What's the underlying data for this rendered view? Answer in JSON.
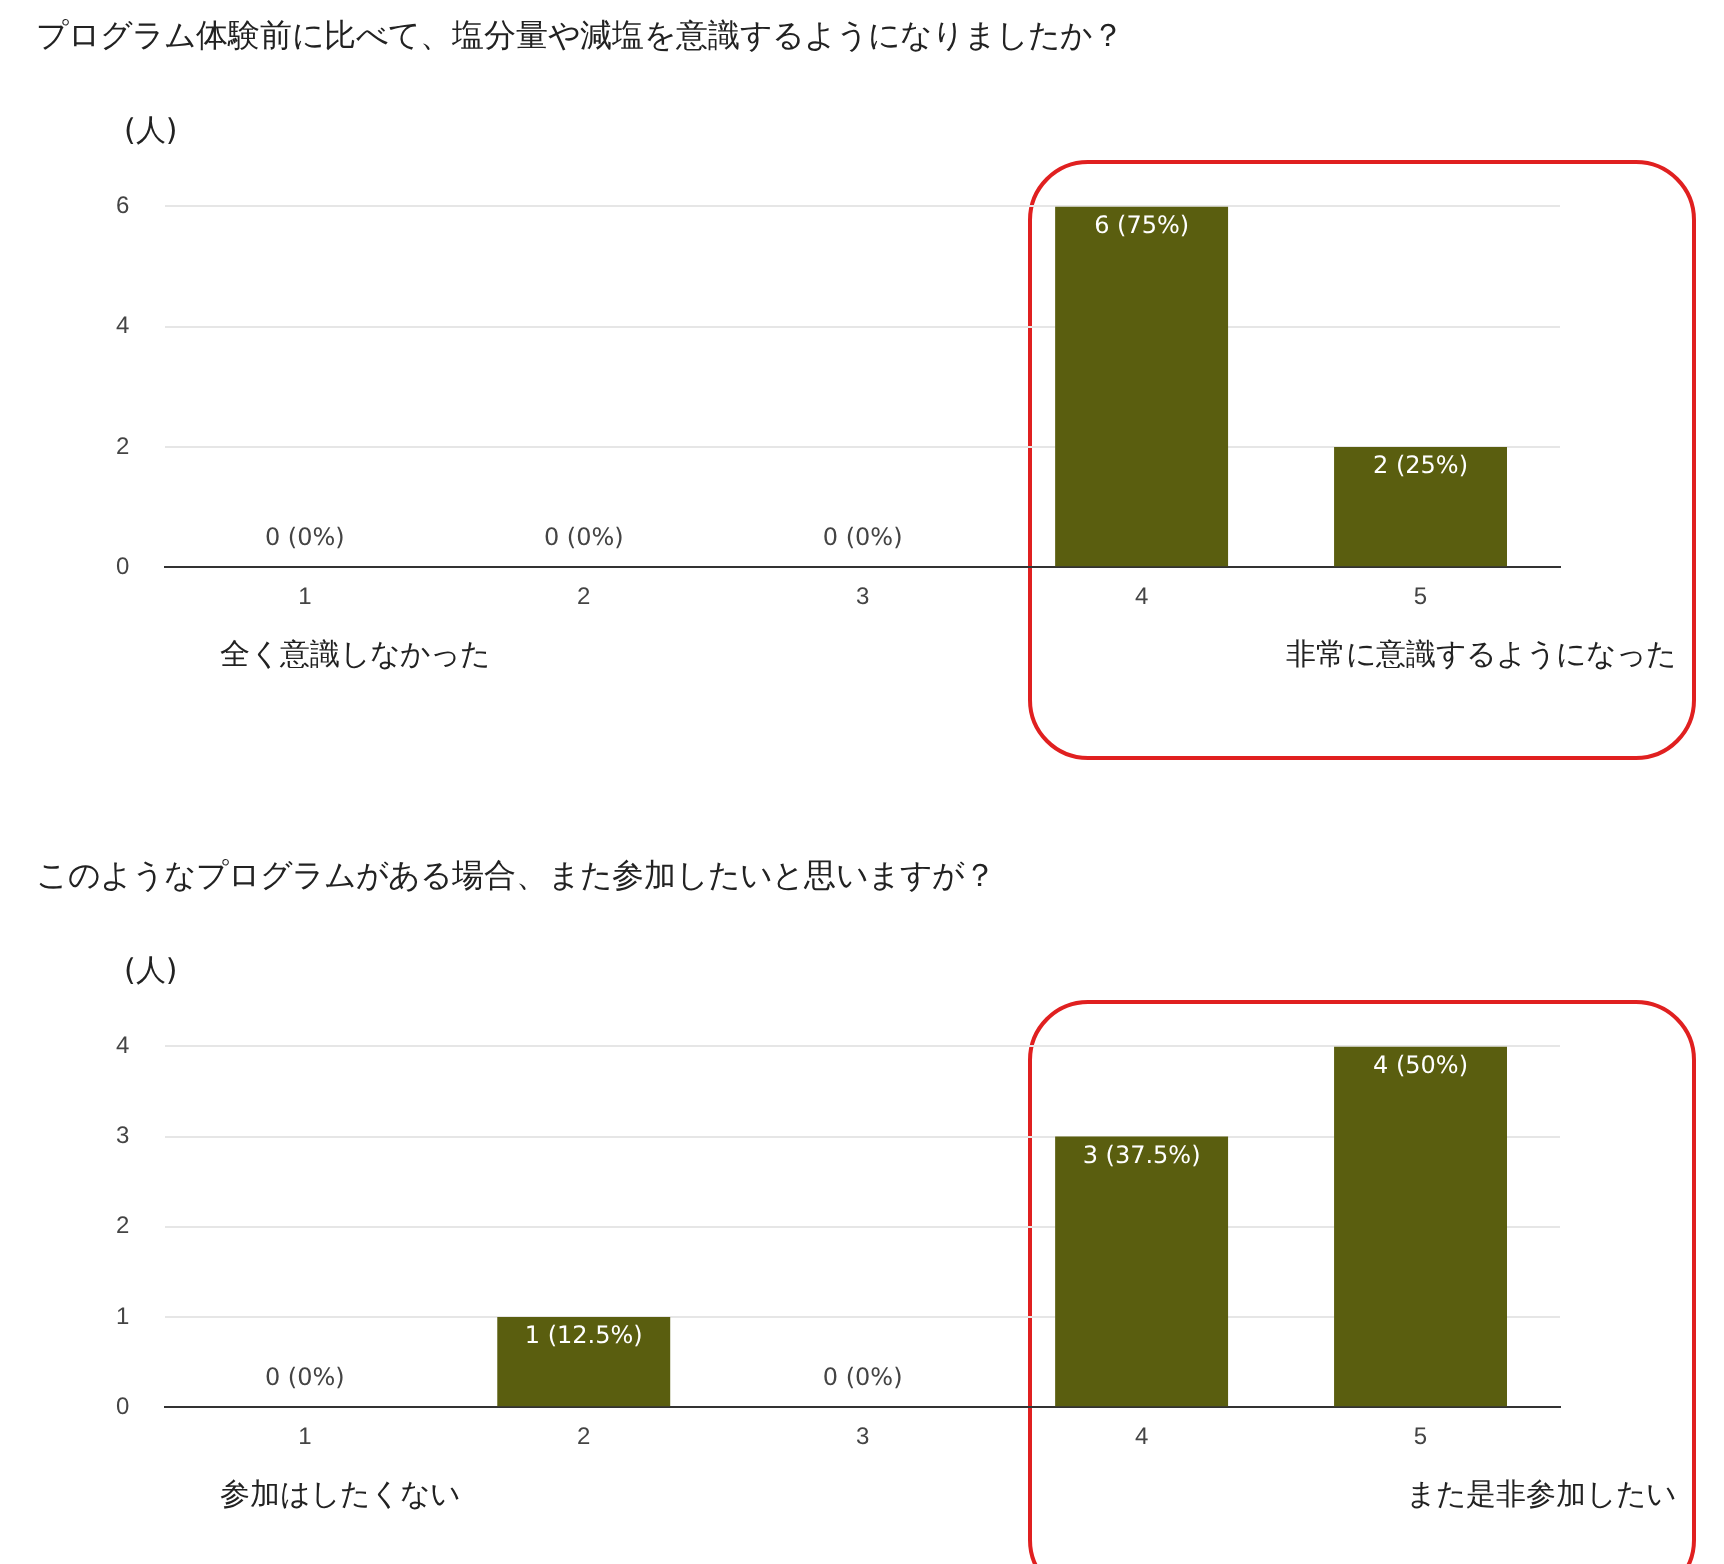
{
  "chart_data": [
    {
      "type": "bar",
      "title": "プログラム体験前に比べて、塩分量や減塩を意識するようになりましたか？",
      "ylabel": "(人)",
      "categories": [
        "1",
        "2",
        "3",
        "4",
        "5"
      ],
      "values": [
        0,
        0,
        0,
        6,
        2
      ],
      "color": "#5a5e0f",
      "value_labels": [
        "0 (0%)",
        "0 (0%)",
        "0 (0%)",
        "6 (75%)",
        "2 (25%)"
      ],
      "ylim": [
        0,
        6
      ],
      "yticks": [
        0,
        2,
        4,
        6
      ],
      "grid": "y",
      "legend": false,
      "annotations": [
        "全く意識しなかった",
        "非常に意識するようになった"
      ]
    },
    {
      "type": "bar",
      "title": "このようなプログラムがある場合、また参加したいと思いますが？",
      "ylabel": "(人)",
      "categories": [
        "1",
        "2",
        "3",
        "4",
        "5"
      ],
      "values": [
        0,
        1,
        0,
        3,
        4
      ],
      "color": "#5a5e0f",
      "value_labels": [
        "0 (0%)",
        "1 (12.5%)",
        "0 (0%)",
        "3 (37.5%)",
        "4 (50%)"
      ],
      "ylim": [
        0,
        4
      ],
      "yticks": [
        0,
        1,
        2,
        3,
        4
      ],
      "grid": "y",
      "legend": false,
      "annotations": [
        "参加はしたくない",
        "また是非参加したい"
      ]
    }
  ]
}
